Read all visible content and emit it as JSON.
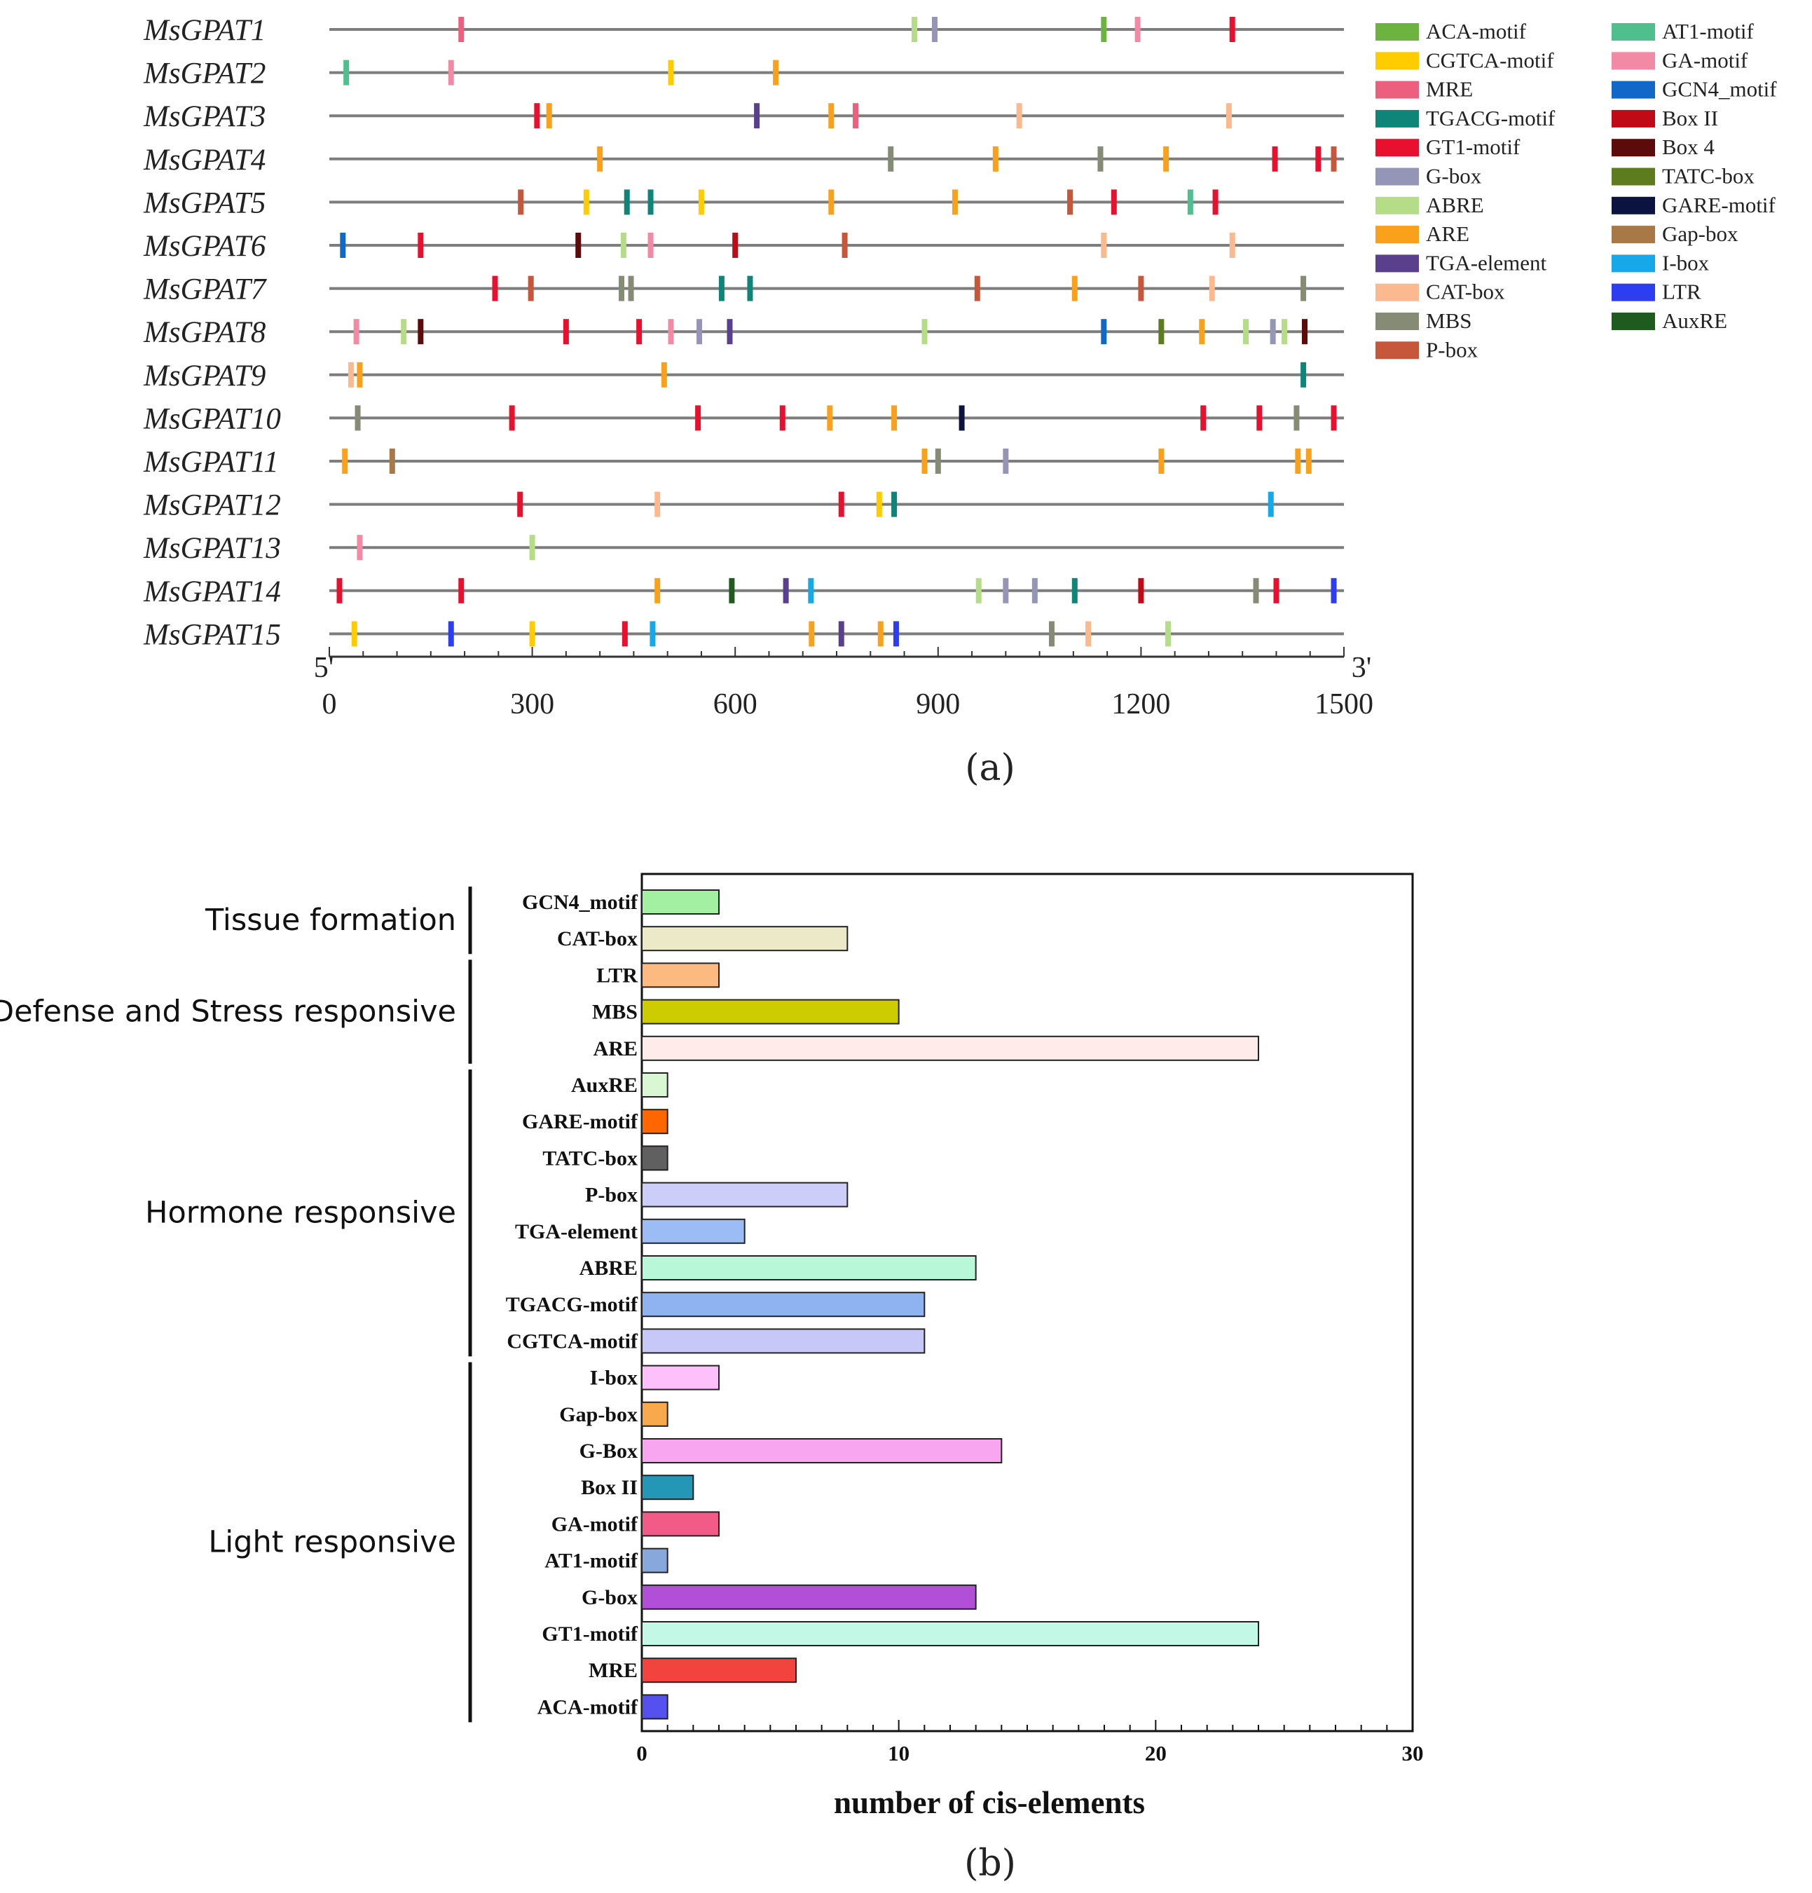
{
  "chart_data": [
    {
      "panel": "(a)",
      "type": "motif-map",
      "x_range": [
        0,
        1500
      ],
      "x_ticks": [
        "0",
        "300",
        "600",
        "900",
        "1200",
        "1500"
      ],
      "end_labels": {
        "start": "5'",
        "end": "3'"
      },
      "legend": [
        {
          "name": "ACA-motif",
          "color": "#6db33f"
        },
        {
          "name": "CGTCA-motif",
          "color": "#ffcc00"
        },
        {
          "name": "MRE",
          "color": "#ec5f7e"
        },
        {
          "name": "TGACG-motif",
          "color": "#0f8479"
        },
        {
          "name": "GT1-motif",
          "color": "#e8102e"
        },
        {
          "name": "G-box",
          "color": "#9595b8"
        },
        {
          "name": "ABRE",
          "color": "#b5dc87"
        },
        {
          "name": "ARE",
          "color": "#f9a11b"
        },
        {
          "name": "TGA-element",
          "color": "#5a3f8c"
        },
        {
          "name": "CAT-box",
          "color": "#fbb98f"
        },
        {
          "name": "MBS",
          "color": "#858b74"
        },
        {
          "name": "P-box",
          "color": "#c6573a"
        },
        {
          "name": "AT1-motif",
          "color": "#4fc08d"
        },
        {
          "name": "GA-motif",
          "color": "#f28aa5"
        },
        {
          "name": "GCN4_motif",
          "color": "#1168c8"
        },
        {
          "name": "Box II",
          "color": "#c00b16"
        },
        {
          "name": "Box 4",
          "color": "#5c0a0a"
        },
        {
          "name": "TATC-box",
          "color": "#5d7c1d"
        },
        {
          "name": "GARE-motif",
          "color": "#0b1440"
        },
        {
          "name": "Gap-box",
          "color": "#a87847"
        },
        {
          "name": "I-box",
          "color": "#16a8e8"
        },
        {
          "name": "LTR",
          "color": "#2d3ef2"
        },
        {
          "name": "AuxRE",
          "color": "#1f5a1f"
        }
      ],
      "genes": [
        {
          "name": "MsGPAT1",
          "motifs": [
            [
              "MRE",
              195
            ],
            [
              "ABRE",
              865
            ],
            [
              "G-box",
              895
            ],
            [
              "ACA-motif",
              1145
            ],
            [
              "GA-motif",
              1195
            ],
            [
              "GT1-motif",
              1335
            ]
          ]
        },
        {
          "name": "MsGPAT2",
          "motifs": [
            [
              "AT1-motif",
              25
            ],
            [
              "GA-motif",
              180
            ],
            [
              "CGTCA-motif",
              505
            ],
            [
              "ARE",
              660
            ]
          ]
        },
        {
          "name": "MsGPAT3",
          "motifs": [
            [
              "GT1-motif",
              307
            ],
            [
              "ARE",
              325
            ],
            [
              "TGA-element",
              632
            ],
            [
              "ARE",
              742
            ],
            [
              "MRE",
              778
            ],
            [
              "CAT-box",
              1020
            ],
            [
              "CAT-box",
              1330
            ]
          ]
        },
        {
          "name": "MsGPAT4",
          "motifs": [
            [
              "ARE",
              400
            ],
            [
              "MBS",
              830
            ],
            [
              "ARE",
              985
            ],
            [
              "MBS",
              1140
            ],
            [
              "ARE",
              1237
            ],
            [
              "GT1-motif",
              1398
            ],
            [
              "GT1-motif",
              1462
            ],
            [
              "P-box",
              1485
            ]
          ]
        },
        {
          "name": "MsGPAT5",
          "motifs": [
            [
              "P-box",
              283
            ],
            [
              "CGTCA-motif",
              380
            ],
            [
              "TGACG-motif",
              440
            ],
            [
              "TGACG-motif",
              475
            ],
            [
              "CGTCA-motif",
              550
            ],
            [
              "ARE",
              742
            ],
            [
              "ARE",
              925
            ],
            [
              "P-box",
              1095
            ],
            [
              "GT1-motif",
              1160
            ],
            [
              "AT1-motif",
              1273
            ],
            [
              "GT1-motif",
              1310
            ]
          ]
        },
        {
          "name": "MsGPAT6",
          "motifs": [
            [
              "GCN4_motif",
              20
            ],
            [
              "GT1-motif",
              135
            ],
            [
              "Box 4",
              368
            ],
            [
              "ABRE",
              435
            ],
            [
              "GA-motif",
              475
            ],
            [
              "Box II",
              600
            ],
            [
              "P-box",
              762
            ],
            [
              "CAT-box",
              1145
            ],
            [
              "CAT-box",
              1335
            ]
          ]
        },
        {
          "name": "MsGPAT7",
          "motifs": [
            [
              "GT1-motif",
              245
            ],
            [
              "P-box",
              298
            ],
            [
              "MBS",
              432
            ],
            [
              "MBS",
              446
            ],
            [
              "TGACG-motif",
              580
            ],
            [
              "TGACG-motif",
              622
            ],
            [
              "P-box",
              958
            ],
            [
              "ARE",
              1102
            ],
            [
              "P-box",
              1200
            ],
            [
              "CAT-box",
              1305
            ],
            [
              "MBS",
              1440
            ]
          ]
        },
        {
          "name": "MsGPAT8",
          "motifs": [
            [
              "GA-motif",
              40
            ],
            [
              "ABRE",
              110
            ],
            [
              "Box 4",
              135
            ],
            [
              "GT1-motif",
              350
            ],
            [
              "GT1-motif",
              458
            ],
            [
              "GA-motif",
              505
            ],
            [
              "G-box",
              547
            ],
            [
              "TGA-element",
              592
            ],
            [
              "ABRE",
              880
            ],
            [
              "GCN4_motif",
              1145
            ],
            [
              "TATC-box",
              1230
            ],
            [
              "ARE",
              1290
            ],
            [
              "ABRE",
              1355
            ],
            [
              "G-box",
              1395
            ],
            [
              "ABRE",
              1412
            ],
            [
              "Box 4",
              1442
            ]
          ]
        },
        {
          "name": "MsGPAT9",
          "motifs": [
            [
              "CAT-box",
              32
            ],
            [
              "ARE",
              45
            ],
            [
              "ARE",
              495
            ],
            [
              "TGACG-motif",
              1440
            ]
          ]
        },
        {
          "name": "MsGPAT10",
          "motifs": [
            [
              "MBS",
              42
            ],
            [
              "GT1-motif",
              270
            ],
            [
              "GT1-motif",
              545
            ],
            [
              "GT1-motif",
              670
            ],
            [
              "ARE",
              740
            ],
            [
              "ARE",
              835
            ],
            [
              "GARE-motif",
              935
            ],
            [
              "GT1-motif",
              1292
            ],
            [
              "GT1-motif",
              1375
            ],
            [
              "MBS",
              1430
            ],
            [
              "GT1-motif",
              1485
            ]
          ]
        },
        {
          "name": "MsGPAT11",
          "motifs": [
            [
              "ARE",
              23
            ],
            [
              "Gap-box",
              93
            ],
            [
              "ARE",
              880
            ],
            [
              "MBS",
              900
            ],
            [
              "G-box",
              1000
            ],
            [
              "ARE",
              1230
            ],
            [
              "ARE",
              1432
            ],
            [
              "ARE",
              1448
            ]
          ]
        },
        {
          "name": "MsGPAT12",
          "motifs": [
            [
              "GT1-motif",
              282
            ],
            [
              "CAT-box",
              485
            ],
            [
              "GT1-motif",
              757
            ],
            [
              "CGTCA-motif",
              813
            ],
            [
              "TGACG-motif",
              835
            ],
            [
              "I-box",
              1392
            ]
          ]
        },
        {
          "name": "MsGPAT13",
          "motifs": [
            [
              "GA-motif",
              45
            ],
            [
              "ABRE",
              300
            ]
          ]
        },
        {
          "name": "MsGPAT14",
          "motifs": [
            [
              "GT1-motif",
              15
            ],
            [
              "GT1-motif",
              195
            ],
            [
              "ARE",
              485
            ],
            [
              "AuxRE",
              595
            ],
            [
              "TGA-element",
              675
            ],
            [
              "I-box",
              712
            ],
            [
              "ABRE",
              960
            ],
            [
              "G-box",
              1000
            ],
            [
              "G-box",
              1043
            ],
            [
              "TGACG-motif",
              1102
            ],
            [
              "Box II",
              1200
            ],
            [
              "MBS",
              1370
            ],
            [
              "GT1-motif",
              1400
            ],
            [
              "LTR",
              1485
            ]
          ]
        },
        {
          "name": "MsGPAT15",
          "motifs": [
            [
              "CGTCA-motif",
              37
            ],
            [
              "LTR",
              180
            ],
            [
              "CGTCA-motif",
              300
            ],
            [
              "GT1-motif",
              437
            ],
            [
              "I-box",
              478
            ],
            [
              "ARE",
              713
            ],
            [
              "TGA-element",
              757
            ],
            [
              "ARE",
              815
            ],
            [
              "LTR",
              838
            ],
            [
              "MBS",
              1068
            ],
            [
              "CAT-box",
              1122
            ],
            [
              "ABRE",
              1240
            ]
          ]
        }
      ]
    },
    {
      "panel": "(b)",
      "type": "bar",
      "orientation": "horizontal",
      "xlabel": "number of cis-elements",
      "xlim": [
        0,
        30
      ],
      "x_ticks": [
        "0",
        "10",
        "20",
        "30"
      ],
      "categories": [
        "GCN4_motif",
        "CAT-box",
        "LTR",
        "MBS",
        "ARE",
        "AuxRE",
        "GARE-motif",
        "TATC-box",
        "P-box",
        "TGA-element",
        "ABRE",
        "TGACG-motif",
        "CGTCA-motif",
        "I-box",
        "Gap-box",
        "G-Box",
        "Box II",
        "GA-motif",
        "AT1-motif",
        "G-box",
        "GT1-motif",
        "MRE",
        "ACA-motif"
      ],
      "values": [
        3,
        8,
        3,
        10,
        24,
        1,
        1,
        1,
        8,
        4,
        13,
        11,
        11,
        3,
        1,
        14,
        2,
        3,
        1,
        13,
        24,
        6,
        1
      ],
      "colors": [
        "#a3f0a3",
        "#ebe9c8",
        "#fdba80",
        "#cccc00",
        "#fdecea",
        "#d8f7d2",
        "#ff6600",
        "#606060",
        "#cccdf8",
        "#9bbcf5",
        "#b8f7d8",
        "#8fb3f0",
        "#c8c8f8",
        "#fdc0fb",
        "#f8a94c",
        "#f7a6ef",
        "#2497b7",
        "#f25a88",
        "#88a8dc",
        "#b24fd8",
        "#c3f7e6",
        "#f2433f",
        "#5451ee"
      ],
      "groups": [
        {
          "label": "Tissue formation",
          "from": 0,
          "to": 1
        },
        {
          "label": "Defense and Stress responsive",
          "from": 2,
          "to": 4
        },
        {
          "label": "Hormone responsive",
          "from": 5,
          "to": 12
        },
        {
          "label": "Light responsive",
          "from": 13,
          "to": 22
        }
      ]
    }
  ]
}
